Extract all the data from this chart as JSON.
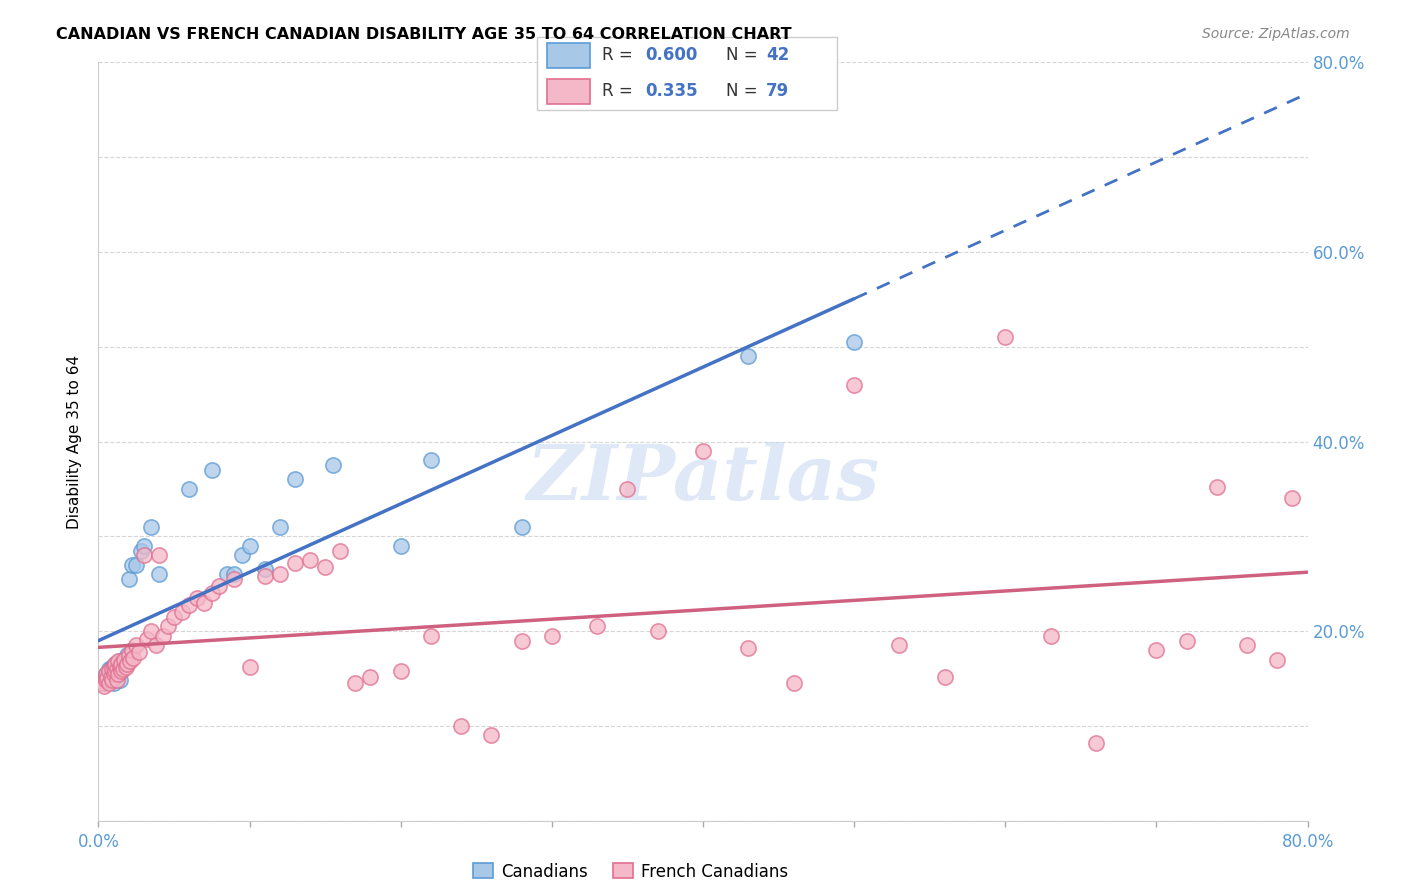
{
  "title": "CANADIAN VS FRENCH CANADIAN DISABILITY AGE 35 TO 64 CORRELATION CHART",
  "source": "Source: ZipAtlas.com",
  "ylabel": "Disability Age 35 to 64",
  "xlim": [
    0.0,
    0.8
  ],
  "ylim": [
    0.0,
    0.8
  ],
  "R_canadian": 0.6,
  "N_canadian": 42,
  "R_french": 0.335,
  "N_french": 79,
  "color_canadian_fill": "#a8c8e8",
  "color_canadian_edge": "#5b9bd5",
  "color_french_fill": "#f4b8c8",
  "color_french_edge": "#e07090",
  "color_line_canadian": "#4472c4",
  "color_line_french": "#d06080",
  "watermark_color": "#c8daf0",
  "canadians_x": [
    0.003,
    0.005,
    0.005,
    0.006,
    0.007,
    0.007,
    0.008,
    0.009,
    0.01,
    0.01,
    0.011,
    0.012,
    0.013,
    0.014,
    0.014,
    0.015,
    0.016,
    0.017,
    0.018,
    0.019,
    0.02,
    0.022,
    0.025,
    0.028,
    0.03,
    0.035,
    0.04,
    0.06,
    0.075,
    0.085,
    0.09,
    0.095,
    0.1,
    0.11,
    0.12,
    0.13,
    0.155,
    0.2,
    0.22,
    0.28,
    0.43,
    0.5
  ],
  "canadians_y": [
    0.145,
    0.15,
    0.155,
    0.152,
    0.148,
    0.16,
    0.155,
    0.162,
    0.145,
    0.158,
    0.165,
    0.16,
    0.155,
    0.148,
    0.168,
    0.158,
    0.162,
    0.17,
    0.165,
    0.175,
    0.255,
    0.27,
    0.27,
    0.285,
    0.29,
    0.31,
    0.26,
    0.35,
    0.37,
    0.26,
    0.26,
    0.28,
    0.29,
    0.265,
    0.31,
    0.36,
    0.375,
    0.29,
    0.38,
    0.31,
    0.49,
    0.505
  ],
  "french_x": [
    0.003,
    0.004,
    0.005,
    0.005,
    0.006,
    0.007,
    0.007,
    0.008,
    0.009,
    0.009,
    0.01,
    0.01,
    0.011,
    0.011,
    0.012,
    0.012,
    0.013,
    0.013,
    0.014,
    0.015,
    0.015,
    0.016,
    0.017,
    0.018,
    0.019,
    0.02,
    0.021,
    0.022,
    0.023,
    0.025,
    0.027,
    0.03,
    0.032,
    0.035,
    0.038,
    0.04,
    0.043,
    0.046,
    0.05,
    0.055,
    0.06,
    0.065,
    0.07,
    0.075,
    0.08,
    0.09,
    0.1,
    0.11,
    0.12,
    0.13,
    0.14,
    0.15,
    0.16,
    0.17,
    0.18,
    0.2,
    0.22,
    0.24,
    0.26,
    0.28,
    0.3,
    0.33,
    0.35,
    0.37,
    0.4,
    0.43,
    0.46,
    0.5,
    0.53,
    0.56,
    0.6,
    0.63,
    0.66,
    0.7,
    0.72,
    0.74,
    0.76,
    0.78,
    0.79
  ],
  "french_y": [
    0.145,
    0.142,
    0.148,
    0.155,
    0.15,
    0.145,
    0.158,
    0.152,
    0.148,
    0.16,
    0.155,
    0.162,
    0.158,
    0.165,
    0.148,
    0.16,
    0.155,
    0.168,
    0.162,
    0.158,
    0.165,
    0.16,
    0.17,
    0.162,
    0.165,
    0.175,
    0.168,
    0.18,
    0.172,
    0.185,
    0.178,
    0.28,
    0.192,
    0.2,
    0.185,
    0.28,
    0.195,
    0.205,
    0.215,
    0.22,
    0.228,
    0.235,
    0.23,
    0.24,
    0.248,
    0.255,
    0.162,
    0.258,
    0.26,
    0.272,
    0.275,
    0.268,
    0.285,
    0.145,
    0.152,
    0.158,
    0.195,
    0.1,
    0.09,
    0.19,
    0.195,
    0.205,
    0.35,
    0.2,
    0.39,
    0.182,
    0.145,
    0.46,
    0.185,
    0.152,
    0.51,
    0.195,
    0.082,
    0.18,
    0.19,
    0.352,
    0.185,
    0.17,
    0.34
  ],
  "line_can_x0": 0.0,
  "line_can_y0": 0.155,
  "line_can_x1_solid": 0.5,
  "line_can_y1_solid": 0.495,
  "line_can_x1_dash": 0.8,
  "line_can_y1_dash": 0.66,
  "line_fr_x0": 0.0,
  "line_fr_y0": 0.155,
  "line_fr_x1": 0.8,
  "line_fr_y1": 0.335
}
